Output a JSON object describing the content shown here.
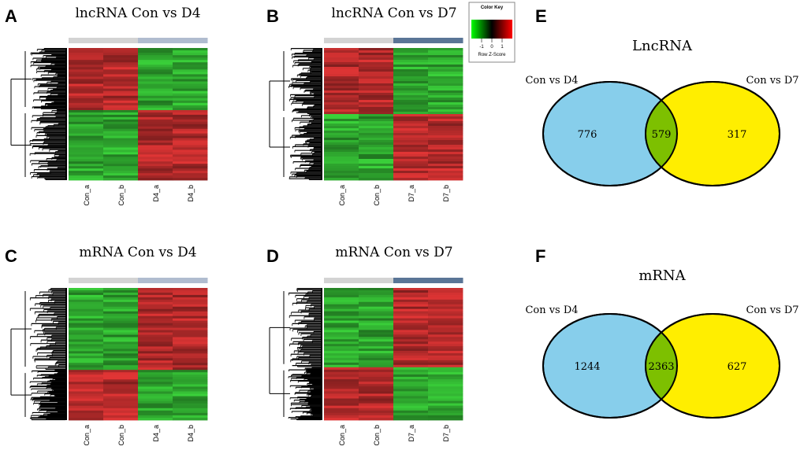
{
  "panels": {
    "A": {
      "letter": "A",
      "title": "lncRNA Con vs D4"
    },
    "B": {
      "letter": "B",
      "title": "lncRNA Con vs D7"
    },
    "C": {
      "letter": "C",
      "title": "mRNA Con vs D4"
    },
    "D": {
      "letter": "D",
      "title": "mRNA Con vs D7"
    },
    "E": {
      "letter": "E",
      "title": "LncRNA"
    },
    "F": {
      "letter": "F",
      "title": "mRNA"
    }
  },
  "color_key": {
    "title": "Color Key",
    "ticks": [
      "-1",
      "0",
      "1"
    ],
    "label": "Row Z-Score",
    "colors": [
      "#00ff00",
      "#000000",
      "#ff0000"
    ]
  },
  "colors": {
    "con_bar": "#d3d3d3",
    "d4_bar": "#b0bccf",
    "d7_bar": "#5a7596",
    "up": "#b22a2a",
    "down": "#2ea52e",
    "venn_left": "#87ceeb",
    "venn_right": "#ffee00",
    "venn_overlap": "#7dc000"
  },
  "chart_data": [
    {
      "type": "heatmap",
      "panel": "A",
      "title": "lncRNA Con vs D4",
      "columns": [
        "Con_a",
        "Con_b",
        "D4_a",
        "D4_b"
      ],
      "groups": [
        "Con",
        "Con",
        "D4",
        "D4"
      ],
      "row_clusters": [
        {
          "fraction": 0.47,
          "pattern": [
            "high",
            "high",
            "low",
            "low"
          ]
        },
        {
          "fraction": 0.53,
          "pattern": [
            "low",
            "low",
            "high",
            "high"
          ]
        }
      ]
    },
    {
      "type": "heatmap",
      "panel": "B",
      "title": "lncRNA Con vs D7",
      "columns": [
        "Con_a",
        "Con_b",
        "D7_a",
        "D7_b"
      ],
      "groups": [
        "Con",
        "Con",
        "D7",
        "D7"
      ],
      "row_clusters": [
        {
          "fraction": 0.5,
          "pattern": [
            "high",
            "high",
            "low",
            "low"
          ]
        },
        {
          "fraction": 0.5,
          "pattern": [
            "low",
            "low",
            "high",
            "high"
          ]
        }
      ]
    },
    {
      "type": "heatmap",
      "panel": "C",
      "title": "mRNA Con vs D4",
      "columns": [
        "Con_a",
        "Con_b",
        "D4_a",
        "D4_b"
      ],
      "groups": [
        "Con",
        "Con",
        "D4",
        "D4"
      ],
      "row_clusters": [
        {
          "fraction": 0.62,
          "pattern": [
            "low",
            "low",
            "high",
            "high"
          ]
        },
        {
          "fraction": 0.38,
          "pattern": [
            "high",
            "high",
            "low",
            "low"
          ]
        }
      ]
    },
    {
      "type": "heatmap",
      "panel": "D",
      "title": "mRNA Con vs D7",
      "columns": [
        "Con_a",
        "Con_b",
        "D7_a",
        "D7_b"
      ],
      "groups": [
        "Con",
        "Con",
        "D7",
        "D7"
      ],
      "row_clusters": [
        {
          "fraction": 0.6,
          "pattern": [
            "low",
            "low",
            "high",
            "high"
          ]
        },
        {
          "fraction": 0.4,
          "pattern": [
            "high",
            "high",
            "low",
            "low"
          ]
        }
      ]
    },
    {
      "type": "venn",
      "panel": "E",
      "title": "LncRNA",
      "sets": [
        "Con vs D4",
        "Con vs D7"
      ],
      "values": {
        "left_only": 776,
        "both": 579,
        "right_only": 317
      }
    },
    {
      "type": "venn",
      "panel": "F",
      "title": "mRNA",
      "sets": [
        "Con vs D4",
        "Con vs D7"
      ],
      "values": {
        "left_only": 1244,
        "both": 2363,
        "right_only": 627
      }
    }
  ]
}
